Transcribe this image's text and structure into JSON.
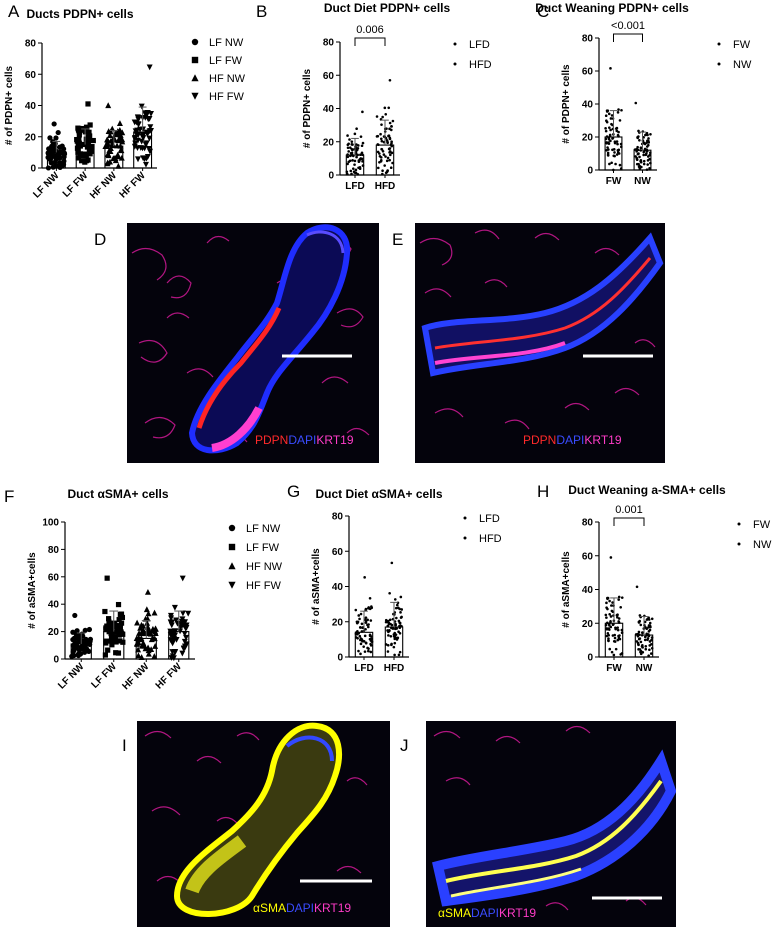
{
  "panels": {
    "A": {
      "letter": "A",
      "title": "Ducts PDPN+ cells",
      "ylabel": "# of PDPN+ cells"
    },
    "B": {
      "letter": "B",
      "title": "Duct Diet PDPN+ cells",
      "ylabel": "# of PDPN+ cells",
      "pvalue": "0.006"
    },
    "C": {
      "letter": "C",
      "title": "Duct Weaning PDPN+ cells",
      "ylabel": "# of PDPN+ cells",
      "pvalue": "<0.001"
    },
    "D": {
      "letter": "D",
      "stain": [
        "PDPN",
        "DAPI",
        "KRT19"
      ]
    },
    "E": {
      "letter": "E",
      "stain": [
        "PDPN",
        "DAPI",
        "KRT19"
      ]
    },
    "F": {
      "letter": "F",
      "title": "Duct αSMA+ cells",
      "ylabel": "# of aSMA+cells"
    },
    "G": {
      "letter": "G",
      "title": "Duct Diet αSMA+ cells",
      "ylabel": "# of aSMA+cells"
    },
    "H": {
      "letter": "H",
      "title": "Duct Weaning a-SMA+ cells",
      "ylabel": "# of aSMA+cells",
      "pvalue": "0.001"
    },
    "I": {
      "letter": "I",
      "stain": [
        "αSMA",
        "DAPI",
        "KRT19"
      ]
    },
    "J": {
      "letter": "J",
      "stain": [
        "αSMA",
        "DAPI",
        "KRT19"
      ]
    }
  },
  "stain_colors": {
    "PDPN": "#ff2a2a",
    "DAPI": "#2a3cff",
    "KRT19": "#ff3cc8",
    "αSMA": "#ffff00"
  },
  "chart_data": [
    {
      "id": "A",
      "type": "bar",
      "title": "Ducts PDPN+ cells",
      "ylabel": "# of PDPN+ cells",
      "categories": [
        "LF NW",
        "LF FW",
        "HF NW",
        "HF FW"
      ],
      "values": [
        10,
        15,
        14,
        23
      ],
      "sd": [
        7,
        10,
        10,
        16
      ],
      "ylim": [
        0,
        80
      ],
      "yticks": [
        0,
        20,
        40,
        60,
        80
      ],
      "legend": [
        "LF NW",
        "LF FW",
        "HF NW",
        "HF FW"
      ],
      "markers": [
        "circle",
        "square",
        "triangle-up",
        "triangle-down"
      ]
    },
    {
      "id": "B",
      "type": "bar",
      "title": "Duct Diet PDPN+ cells",
      "ylabel": "# of PDPN+ cells",
      "categories": [
        "LFD",
        "HFD"
      ],
      "values": [
        12,
        18
      ],
      "sd": [
        10,
        15
      ],
      "ylim": [
        0,
        80
      ],
      "yticks": [
        0,
        20,
        40,
        60,
        80
      ],
      "legend": [
        "LFD",
        "HFD"
      ],
      "comparison": {
        "pair": [
          "LFD",
          "HFD"
        ],
        "p": "0.006"
      }
    },
    {
      "id": "C",
      "type": "bar",
      "title": "Duct Weaning PDPN+ cells",
      "ylabel": "# of PDPN+ cells",
      "categories": [
        "FW",
        "NW"
      ],
      "values": [
        20,
        12
      ],
      "sd": [
        16,
        11
      ],
      "ylim": [
        0,
        80
      ],
      "yticks": [
        0,
        20,
        40,
        60,
        80
      ],
      "legend": [
        "FW",
        "NW"
      ],
      "comparison": {
        "pair": [
          "FW",
          "NW"
        ],
        "p": "<0.001"
      }
    },
    {
      "id": "F",
      "type": "bar",
      "title": "Duct αSMA+ cells",
      "ylabel": "# of aSMA+cells",
      "categories": [
        "LF NW",
        "LF FW",
        "HF NW",
        "HF FW"
      ],
      "values": [
        11,
        20,
        15,
        20
      ],
      "sd": [
        8,
        15,
        13,
        15
      ],
      "ylim": [
        0,
        100
      ],
      "yticks": [
        0,
        20,
        40,
        60,
        80,
        100
      ],
      "legend": [
        "LF NW",
        "LF FW",
        "HF NW",
        "HF FW"
      ],
      "markers": [
        "circle",
        "square",
        "triangle-up",
        "triangle-down"
      ]
    },
    {
      "id": "G",
      "type": "bar",
      "title": "Duct Diet αSMA+ cells",
      "ylabel": "# of aSMA+cells",
      "categories": [
        "LFD",
        "HFD"
      ],
      "values": [
        14,
        17
      ],
      "sd": [
        12,
        14
      ],
      "ylim": [
        0,
        80
      ],
      "yticks": [
        0,
        20,
        40,
        60,
        80
      ],
      "legend": [
        "LFD",
        "HFD"
      ]
    },
    {
      "id": "H",
      "type": "bar",
      "title": "Duct Weaning a-SMA+ cells",
      "ylabel": "# of aSMA+cells",
      "categories": [
        "FW",
        "NW"
      ],
      "values": [
        20,
        13
      ],
      "sd": [
        15,
        11
      ],
      "ylim": [
        0,
        80
      ],
      "yticks": [
        0,
        20,
        40,
        60,
        80
      ],
      "legend": [
        "FW",
        "NW"
      ],
      "comparison": {
        "pair": [
          "FW",
          "NW"
        ],
        "p": "0.001"
      }
    }
  ]
}
